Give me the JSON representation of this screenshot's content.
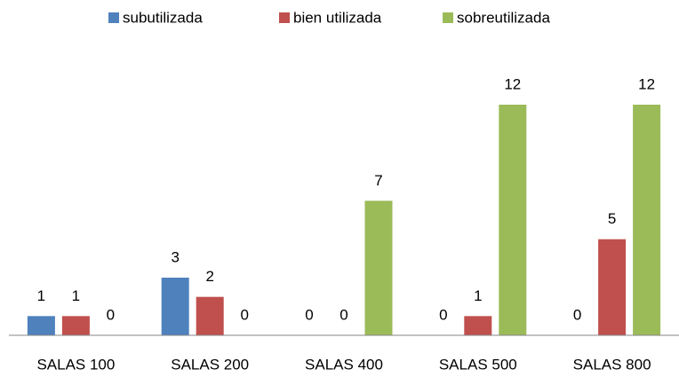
{
  "chart_data": {
    "type": "bar",
    "categories": [
      "SALAS 100",
      "SALAS 200",
      "SALAS 400",
      "SALAS 500",
      "SALAS 800"
    ],
    "series": [
      {
        "name": "subutilizada",
        "color": "#4f81bd",
        "values": [
          1,
          3,
          0,
          0,
          0
        ]
      },
      {
        "name": "bien utilizada",
        "color": "#c0504d",
        "values": [
          1,
          2,
          0,
          1,
          5
        ]
      },
      {
        "name": "sobreutilizada",
        "color": "#9bbb59",
        "values": [
          0,
          0,
          7,
          12,
          12
        ]
      }
    ],
    "legend": "top"
  }
}
